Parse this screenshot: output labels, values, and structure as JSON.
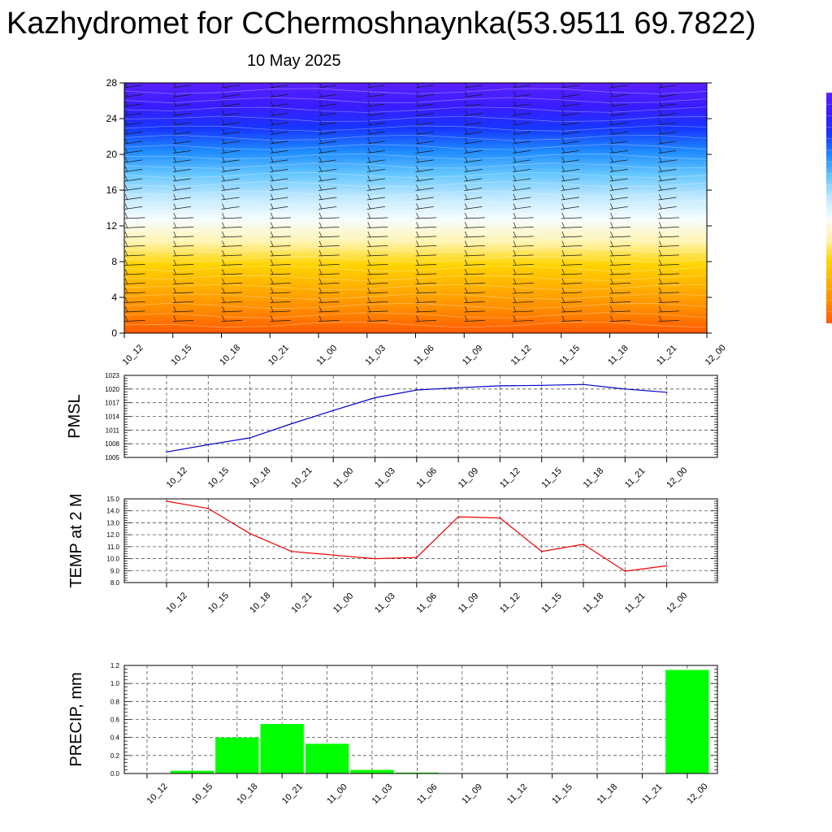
{
  "title": "Kazhydromet for CChermoshnaynka(53.9511 69.7822)",
  "subtitle": "10 May 2025",
  "chart_data": [
    {
      "type": "heatmap",
      "ylim": [
        0,
        28
      ],
      "y_ticks": [
        0,
        4,
        8,
        12,
        16,
        20,
        24,
        28
      ],
      "categories": [
        "10_12",
        "10_15",
        "10_18",
        "10_21",
        "11_00",
        "11_03",
        "11_06",
        "11_09",
        "11_12",
        "11_15",
        "11_18",
        "11_21",
        "12_00"
      ],
      "legend": "colorbar at right, top blue/purple, bottom orange/red",
      "colorscale": [
        "#ff5a00",
        "#ff8a00",
        "#ffb000",
        "#ffd400",
        "#fff4b0",
        "#f6fdff",
        "#bfe8ff",
        "#64c6ff",
        "#1e8bff",
        "#1736ff",
        "#3a1cff",
        "#5a20ff"
      ],
      "wind_barbs": true
    },
    {
      "type": "line",
      "ylabel": "PMSL",
      "ylim": [
        1005,
        1023
      ],
      "y_ticks": [
        1005,
        1008,
        1011,
        1014,
        1017,
        1020,
        1023
      ],
      "grid": true,
      "categories": [
        "10_12",
        "10_15",
        "10_18",
        "10_21",
        "11_00",
        "11_03",
        "11_06",
        "11_09",
        "11_12",
        "11_15",
        "11_18",
        "11_21",
        "12_00"
      ],
      "series": [
        {
          "color": "#0000cc",
          "values": [
            1006.2,
            1007.8,
            1009.3,
            1012.4,
            1015.3,
            1018.1,
            1019.8,
            1020.3,
            1020.7,
            1020.8,
            1021.0,
            1020.0,
            1019.3
          ]
        }
      ]
    },
    {
      "type": "line",
      "ylabel": "TEMP at 2 M",
      "ylim": [
        8.0,
        15.0
      ],
      "y_ticks": [
        "8.0",
        "9.0",
        "10.0",
        "11.0",
        "12.0",
        "13.0",
        "14.0",
        "15.0"
      ],
      "grid": true,
      "categories": [
        "10_12",
        "10_15",
        "10_18",
        "10_21",
        "11_00",
        "11_03",
        "11_06",
        "11_09",
        "11_12",
        "11_15",
        "11_18",
        "11_21",
        "12_00"
      ],
      "series": [
        {
          "color": "#ee0000",
          "values": [
            14.8,
            14.2,
            12.1,
            10.6,
            10.3,
            10.0,
            10.1,
            13.5,
            13.4,
            10.6,
            11.2,
            8.95,
            9.4
          ]
        }
      ]
    },
    {
      "type": "bar",
      "ylabel": "PRECIP, mm",
      "ylim": [
        0.0,
        1.2
      ],
      "y_ticks": [
        "0.0",
        "0.2",
        "0.4",
        "0.6",
        "0.8",
        "1.0",
        "1.2"
      ],
      "grid": true,
      "categories": [
        "10_12",
        "10_15",
        "10_18",
        "10_21",
        "11_00",
        "11_03",
        "11_06",
        "11_09",
        "11_12",
        "11_15",
        "11_18",
        "11_21",
        "12_00"
      ],
      "series": [
        {
          "color": "#00ff00",
          "values": [
            0,
            0.03,
            0.4,
            0.55,
            0.33,
            0.04,
            0.01,
            0,
            0,
            0,
            0,
            0,
            1.15
          ]
        }
      ]
    }
  ]
}
